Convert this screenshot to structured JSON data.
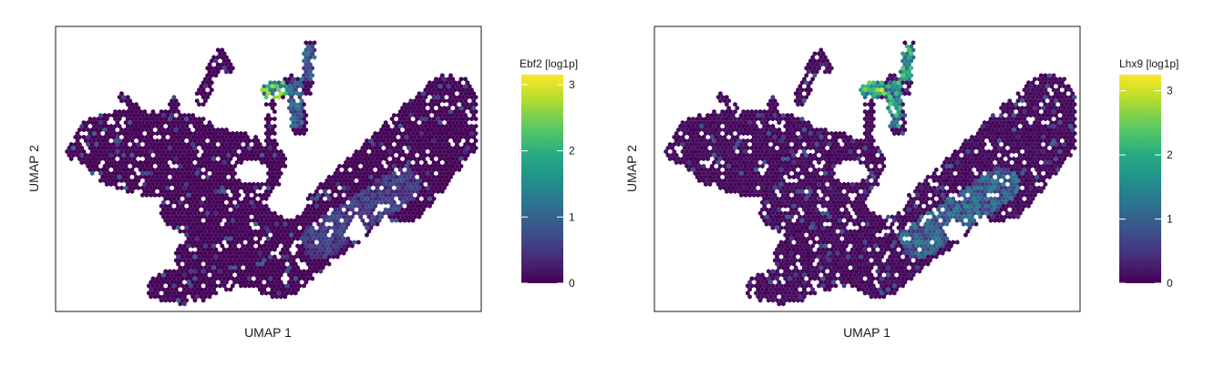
{
  "chart_data": [
    {
      "type": "heatmap",
      "subtype": "hexbin-embedding",
      "xlabel": "UMAP 1",
      "ylabel": "UMAP 2",
      "axis_ticks": "none",
      "grid": false,
      "colorbar": {
        "title": "Ebf2 [log1p]",
        "colormap": "viridis",
        "range": [
          0,
          3.15
        ],
        "ticks": [
          "0",
          "1",
          "2",
          "3"
        ],
        "tick_values": [
          0,
          1,
          2,
          3
        ],
        "placement": "right"
      },
      "expression_regions": [
        {
          "region": "upper projection cluster",
          "value": 2.6
        },
        {
          "region": "upper projection stalk",
          "value": 1.2
        },
        {
          "region": "lower right arm",
          "value": 0.7
        },
        {
          "region": "rest of embedding",
          "value": 0.05
        }
      ]
    },
    {
      "type": "heatmap",
      "subtype": "hexbin-embedding",
      "xlabel": "UMAP 1",
      "ylabel": "UMAP 2",
      "axis_ticks": "none",
      "grid": false,
      "colorbar": {
        "title": "Lhx9 [log1p]",
        "colormap": "viridis",
        "range": [
          0,
          3.25
        ],
        "ticks": [
          "0",
          "1",
          "2",
          "3"
        ],
        "tick_values": [
          0,
          1,
          2,
          3
        ],
        "placement": "right"
      },
      "expression_regions": [
        {
          "region": "upper projection cluster",
          "value": 2.9
        },
        {
          "region": "upper projection stalk",
          "value": 2.3
        },
        {
          "region": "lower right arm",
          "value": 1.3
        },
        {
          "region": "rest of embedding",
          "value": 0.15
        }
      ]
    }
  ]
}
